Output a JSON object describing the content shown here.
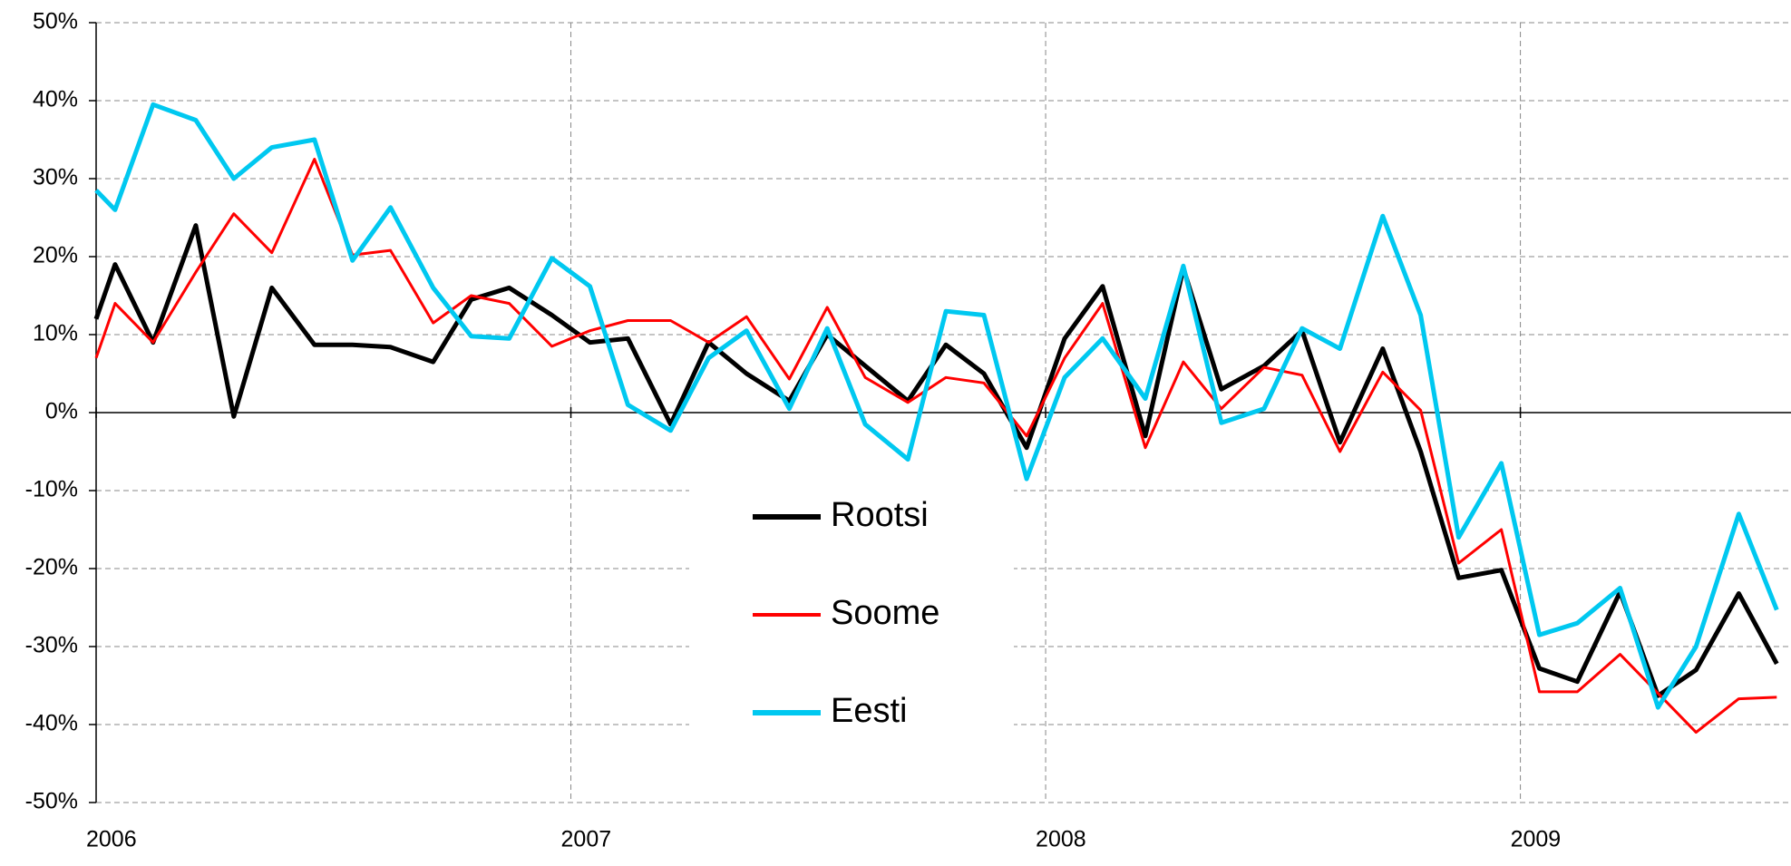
{
  "chart_data": {
    "type": "line",
    "x": [
      2006.0,
      2006.04,
      2006.12,
      2006.21,
      2006.29,
      2006.37,
      2006.46,
      2006.54,
      2006.62,
      2006.71,
      2006.79,
      2006.87,
      2006.96,
      2007.04,
      2007.12,
      2007.21,
      2007.29,
      2007.37,
      2007.46,
      2007.54,
      2007.62,
      2007.71,
      2007.79,
      2007.87,
      2007.96,
      2008.04,
      2008.12,
      2008.21,
      2008.29,
      2008.37,
      2008.46,
      2008.54,
      2008.62,
      2008.71,
      2008.79,
      2008.87,
      2008.96,
      2009.04,
      2009.12,
      2009.21,
      2009.29,
      2009.37,
      2009.46,
      2009.54
    ],
    "series": [
      {
        "name": "Rootsi",
        "color": "#000000",
        "width": 5,
        "values": [
          12,
          19,
          9,
          24,
          -0.5,
          16,
          8.7,
          8.7,
          8.4,
          6.5,
          14.5,
          16,
          12.5,
          9,
          9.5,
          -1.5,
          9,
          5,
          1.5,
          10,
          6,
          1.5,
          8.7,
          5,
          -4.5,
          9.5,
          16.2,
          -3,
          18.5,
          3,
          6,
          10.5,
          -3.8,
          8.2,
          -5,
          -21.2,
          -20.2,
          -32.8,
          -34.5,
          -23,
          -36.3,
          -33,
          -23.2,
          -32.2
        ]
      },
      {
        "name": "Soome",
        "color": "#ff0000",
        "width": 3,
        "values": [
          7,
          14,
          9,
          18,
          25.5,
          20.5,
          32.5,
          20.2,
          20.8,
          11.5,
          15,
          14,
          8.5,
          10.5,
          11.8,
          11.8,
          9,
          12.3,
          4.3,
          13.5,
          4.5,
          1.3,
          4.5,
          3.8,
          -3,
          7,
          14,
          -4.5,
          6.5,
          0.5,
          5.8,
          4.8,
          -5,
          5.2,
          0.3,
          -19.3,
          -15,
          -35.8,
          -35.8,
          -31,
          -36,
          -41,
          -36.7,
          -36.5
        ]
      },
      {
        "name": "Eesti",
        "color": "#00c8f0",
        "width": 5,
        "values": [
          28.5,
          26,
          39.5,
          37.5,
          30,
          34,
          35,
          19.5,
          26.3,
          16,
          9.8,
          9.5,
          19.8,
          16.2,
          1,
          -2.3,
          7,
          10.5,
          0.5,
          10.8,
          -1.5,
          -6,
          13,
          12.5,
          -8.5,
          4.5,
          9.5,
          1.8,
          18.8,
          -1.3,
          0.5,
          10.8,
          8.2,
          25.2,
          12.5,
          -16,
          -6.5,
          -28.5,
          -27,
          -22.5,
          -37.8,
          -30,
          -13,
          -25.3
        ]
      }
    ],
    "xlim": [
      2006.0,
      2009.57
    ],
    "xticks": [
      2006,
      2007,
      2008,
      2009
    ],
    "ylim": [
      -50,
      50
    ],
    "yticks": [
      {
        "value": -50,
        "label": "-50%"
      },
      {
        "value": -40,
        "label": "-40%"
      },
      {
        "value": -30,
        "label": "-30%"
      },
      {
        "value": -20,
        "label": "-20%"
      },
      {
        "value": -10,
        "label": "-10%"
      },
      {
        "value": 0,
        "label": "0%"
      },
      {
        "value": 10,
        "label": "10%"
      },
      {
        "value": 20,
        "label": "20%"
      },
      {
        "value": 30,
        "label": "30%"
      },
      {
        "value": 40,
        "label": "40%"
      },
      {
        "value": 50,
        "label": "50%"
      }
    ],
    "grid": true,
    "legend": "center"
  }
}
